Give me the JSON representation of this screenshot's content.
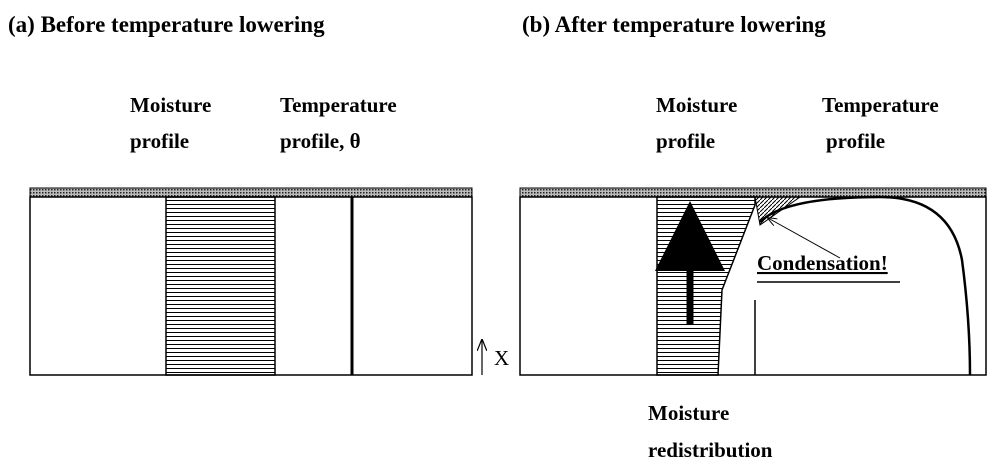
{
  "panel_a": {
    "title": "(a) Before temperature lowering",
    "moisture_label": [
      "Moisture",
      "profile"
    ],
    "temperature_label": [
      "Temperature",
      "profile, θ"
    ],
    "axis_label": "X"
  },
  "panel_b": {
    "title": "(b) After temperature lowering",
    "moisture_label": [
      "Moisture",
      "profile"
    ],
    "temperature_label": [
      "Temperature",
      "profile"
    ],
    "condensation_label": "Condensation!",
    "redistribution_label": [
      "Moisture",
      "redistribution"
    ]
  }
}
